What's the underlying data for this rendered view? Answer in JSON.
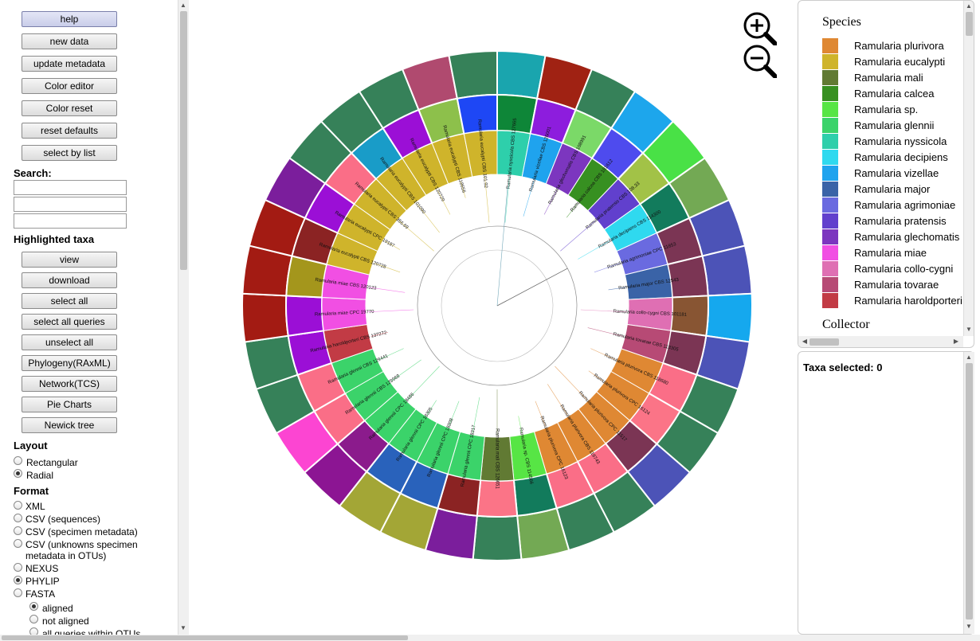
{
  "buttons": {
    "help": "help",
    "new_data": "new data",
    "update_metadata": "update metadata",
    "color_editor": "Color editor",
    "color_reset": "Color reset",
    "reset_defaults": "reset defaults",
    "select_by_list": "select by list"
  },
  "search": {
    "label": "Search:"
  },
  "highlighted": {
    "label": "Highlighted taxa",
    "view": "view",
    "download": "download",
    "select_all": "select all",
    "select_all_queries": "select all queries",
    "unselect_all": "unselect all",
    "phylogeny": "Phylogeny(RAxML)",
    "network": "Network(TCS)",
    "pie_charts": "Pie Charts",
    "newick_tree": "Newick tree"
  },
  "layout": {
    "label": "Layout",
    "rectangular": "Rectangular",
    "radial": "Radial",
    "selected": "radial"
  },
  "format": {
    "label": "Format",
    "xml": "XML",
    "csv_sequences": "CSV (sequences)",
    "csv_specimen": "CSV (specimen metadata)",
    "csv_unknowns_1": "CSV (unknowns specimen",
    "csv_unknowns_2": "metadata in OTUs)",
    "nexus": "NEXUS",
    "phylip": "PHYLIP",
    "fasta": "FASTA",
    "aligned": "aligned",
    "not_aligned": "not aligned",
    "all_queries": "all queries within OTUs",
    "selected": "phylip",
    "fasta_selected": "aligned"
  },
  "legend": {
    "species_title": "Species",
    "collector_title": "Collector",
    "species": [
      {
        "name": "Ramularia plurivora",
        "color": "#df8833"
      },
      {
        "name": "Ramularia eucalypti",
        "color": "#cfb42b"
      },
      {
        "name": "Ramularia mali",
        "color": "#617a33"
      },
      {
        "name": "Ramularia calcea",
        "color": "#379021"
      },
      {
        "name": "Ramularia sp.",
        "color": "#57e545"
      },
      {
        "name": "Ramularia glennii",
        "color": "#3bd36a"
      },
      {
        "name": "Ramularia nyssicola",
        "color": "#2ecfab"
      },
      {
        "name": "Ramularia decipiens",
        "color": "#2fd9ef"
      },
      {
        "name": "Ramularia vizellae",
        "color": "#1fa3ee"
      },
      {
        "name": "Ramularia major",
        "color": "#3a63a7"
      },
      {
        "name": "Ramularia agrimoniae",
        "color": "#6a6ae0"
      },
      {
        "name": "Ramularia pratensis",
        "color": "#6140cd"
      },
      {
        "name": "Ramularia glechomatis",
        "color": "#7c36bf"
      },
      {
        "name": "Ramularia miae",
        "color": "#f14fe3"
      },
      {
        "name": "Ramularia collo-cygni",
        "color": "#df6fb3"
      },
      {
        "name": "Ramularia tovarae",
        "color": "#b74a75"
      },
      {
        "name": "Ramularia haroldporteri",
        "color": "#c23b45"
      }
    ]
  },
  "selection": {
    "label": "Taxa selected: 0"
  },
  "tree": {
    "leaves": [
      {
        "label": "Ramularia nyssicola CBS 127665",
        "species": 6
      },
      {
        "label": "Ramularia vizellae CBS 126001",
        "species": 8
      },
      {
        "label": "Ramularia glechomatis CBS 108991",
        "species": 12
      },
      {
        "label": "Ramularia calcea CBS 101612",
        "species": 3
      },
      {
        "label": "Ramularia pratensis CBS 108.33",
        "species": 11
      },
      {
        "label": "Ramularia decipiens CBS 114300",
        "species": 7
      },
      {
        "label": "Ramularia agrimoniae CPC 11853",
        "species": 10
      },
      {
        "label": "Ramularia major CBS 12543",
        "species": 9
      },
      {
        "label": "Ramularia collo-cygni CBS 101181",
        "species": 14
      },
      {
        "label": "Ramularia tovarae CBS 113305",
        "species": 15
      },
      {
        "label": "Ramularia plurivora CBS 118680",
        "species": 0
      },
      {
        "label": "Ramularia plurivora CPC 16124",
        "species": 0
      },
      {
        "label": "Ramularia plurivora CPC 11517",
        "species": 0
      },
      {
        "label": "Ramularia plurivora CBS 118743",
        "species": 0
      },
      {
        "label": "Ramularia plurivora CPC 16123",
        "species": 0
      },
      {
        "label": "Ramularia sp. CBS 114566",
        "species": 4
      },
      {
        "label": "Ramularia mali CBS 126651",
        "species": 2
      },
      {
        "label": "Ramularia glennii CPC 18317",
        "species": 5
      },
      {
        "label": "Ramularia glennii CPC 18308",
        "species": 5
      },
      {
        "label": "Ramularia glennii CPC 18305",
        "species": 5
      },
      {
        "label": "Ramularia glennii CPC 18486",
        "species": 5
      },
      {
        "label": "Ramularia glennii CBS 129968",
        "species": 5
      },
      {
        "label": "Ramularia glennii CBS 129441",
        "species": 5
      },
      {
        "label": "Ramularia haroldporteri CBS 137272",
        "species": 16
      },
      {
        "label": "Ramularia miae CPC 19770",
        "species": 13
      },
      {
        "label": "Ramularia miae CBS 120123",
        "species": 13
      },
      {
        "label": "Ramularia eucalypti CBS 120728",
        "species": 1
      },
      {
        "label": "Ramularia eucalypti CPC 19187",
        "species": 1
      },
      {
        "label": "Ramularia eucalypti CBS 356.69",
        "species": 1
      },
      {
        "label": "Ramularia eucalypti CBS 101090",
        "species": 1
      },
      {
        "label": "Ramularia eucalypti CBS 120729",
        "species": 1
      },
      {
        "label": "Ramularia eucalypti CBS 118656",
        "species": 1
      },
      {
        "label": "Ramularia eucalypti CBS 101.92",
        "species": 1
      }
    ],
    "ring2": [
      "#0e8638",
      "#8d1ddd",
      "#7bd968",
      "#4e4bee",
      "#a2c247",
      "#127b5c",
      "#7b3554",
      "#7b3554",
      "#885533",
      "#7b3554",
      "#fa6e87",
      "#fb7487",
      "#7b3554",
      "#fa6e87",
      "#fa6e87",
      "#127b5c",
      "#fb7487",
      "#8b2323",
      "#2962bb",
      "#2962bb",
      "#8b1b8c",
      "#fa6e87",
      "#fa6e87",
      "#9b0fd6",
      "#9b0fd6",
      "#a4961c",
      "#8b2323",
      "#9b0fd6",
      "#fa6e87",
      "#199cc8",
      "#9b0fd6",
      "#8dc04b",
      "#1e47f5"
    ],
    "ring3": [
      "#1aa5ae",
      "#a02213",
      "#368159",
      "#1da6ec",
      "#49e146",
      "#73a954",
      "#4c53b7",
      "#4c53b7",
      "#15a8ee",
      "#4c53b7",
      "#368159",
      "#368159",
      "#4c53b7",
      "#368159",
      "#368159",
      "#73a954",
      "#368159",
      "#7b1e9c",
      "#a3a636",
      "#a3a636",
      "#8c1593",
      "#fc45d2",
      "#368159",
      "#368159",
      "#a31b13",
      "#a31b13",
      "#a31b13",
      "#7b1e9c",
      "#368159",
      "#368159",
      "#368159",
      "#b04a6f",
      "#368159"
    ]
  }
}
